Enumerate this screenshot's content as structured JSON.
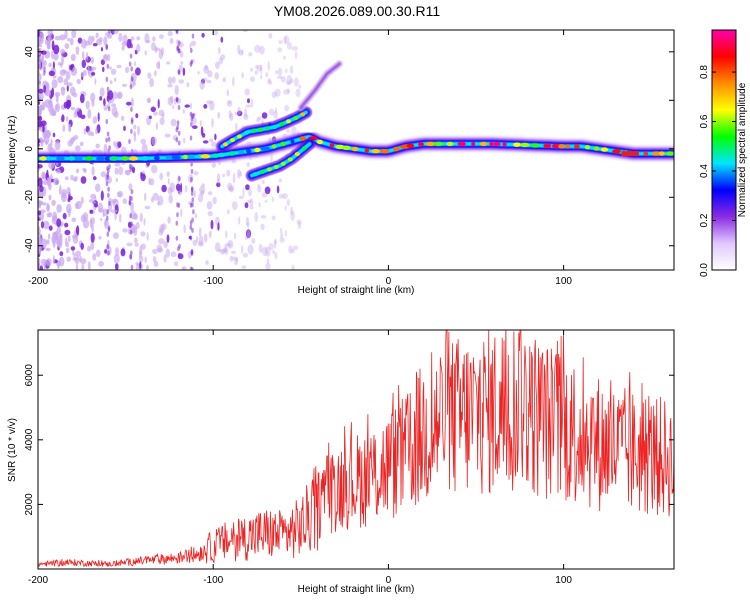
{
  "title": "YM08.2026.089.00.30.R11",
  "colors": {
    "snr_line": "#ee2222",
    "ridge_core": "#dd2222",
    "scatter": "#7a1fd6"
  },
  "chart_data": [
    {
      "type": "heatmap",
      "name": "spectrogram",
      "xlabel": "Height of straight line (km)",
      "ylabel": "Frequency (Hz)",
      "xlim": [
        -200,
        163
      ],
      "ylim": [
        -50,
        49
      ],
      "xticks": [
        -200,
        -100,
        0,
        100
      ],
      "yticks": [
        -40,
        -20,
        0,
        20,
        40
      ],
      "grid": false,
      "colorbar": {
        "label": "Normalized spectral amplitude",
        "range": [
          0.0,
          0.97
        ],
        "ticks": [
          "0.0",
          "0.2",
          "0.4",
          "0.6",
          "0.8"
        ],
        "tick_values": [
          0.0,
          0.2,
          0.4,
          0.6,
          0.8
        ],
        "colormap": [
          "#ffffff",
          "#e0c8ff",
          "#8a2be2",
          "#0000ff",
          "#00e5ff",
          "#00ff00",
          "#ffff00",
          "#ff8c00",
          "#ff0000",
          "#ff00aa"
        ]
      },
      "ridge": {
        "x": [
          -200,
          -180,
          -160,
          -140,
          -120,
          -100,
          -90,
          -80,
          -70,
          -60,
          -50,
          -45,
          -40,
          -30,
          -20,
          -10,
          0,
          10,
          20,
          40,
          60,
          80,
          100,
          110,
          120,
          130,
          140,
          150,
          163
        ],
        "y": [
          -4,
          -4,
          -4,
          -4,
          -3.5,
          -3,
          -2,
          -1,
          0,
          2,
          4,
          5,
          3,
          1,
          0,
          -1,
          -1,
          1,
          2,
          2,
          2,
          1.5,
          1,
          1,
          0,
          -1,
          -2,
          -2,
          -2
        ]
      },
      "branches": [
        {
          "x": [
            -95,
            -88,
            -80,
            -72,
            -65,
            -58,
            -52,
            -47
          ],
          "y": [
            1,
            4,
            7,
            8,
            9,
            11,
            13,
            15
          ]
        },
        {
          "x": [
            -78,
            -70,
            -62,
            -55,
            -50,
            -45
          ],
          "y": [
            -11,
            -9,
            -7,
            -4,
            -1,
            2
          ]
        },
        {
          "x": [
            -50,
            -42,
            -35,
            -28
          ],
          "y": [
            17,
            24,
            31,
            35
          ]
        }
      ]
    },
    {
      "type": "line",
      "name": "snr",
      "xlabel": "Height of straight line (km)",
      "ylabel": "SNR (10 * v/v)",
      "xlim": [
        -200,
        163
      ],
      "ylim": [
        0,
        7400
      ],
      "xticks": [
        -200,
        -100,
        0,
        100
      ],
      "yticks": [
        2000,
        4000,
        6000
      ],
      "grid": false,
      "series": [
        {
          "name": "SNR",
          "x": [
            -200,
            -180,
            -160,
            -140,
            -120,
            -110,
            -100,
            -90,
            -80,
            -70,
            -60,
            -50,
            -45,
            -40,
            -35,
            -30,
            -25,
            -20,
            -10,
            0,
            10,
            20,
            30,
            40,
            50,
            60,
            70,
            75,
            80,
            90,
            100,
            110,
            120,
            130,
            140,
            150,
            163
          ],
          "values": [
            150,
            200,
            150,
            250,
            350,
            450,
            700,
            900,
            1000,
            1100,
            1050,
            1300,
            1600,
            2000,
            2300,
            2500,
            2700,
            2700,
            2900,
            3200,
            3500,
            4200,
            4600,
            4700,
            4800,
            4900,
            5000,
            5300,
            4900,
            4600,
            4400,
            4200,
            3900,
            3700,
            3600,
            3500,
            3400
          ],
          "peaks": [
            {
              "x": -35,
              "y": 3500
            },
            {
              "x": 30,
              "y": 6300
            },
            {
              "x": 75,
              "y": 7400
            },
            {
              "x": 100,
              "y": 7250
            }
          ]
        }
      ]
    }
  ]
}
